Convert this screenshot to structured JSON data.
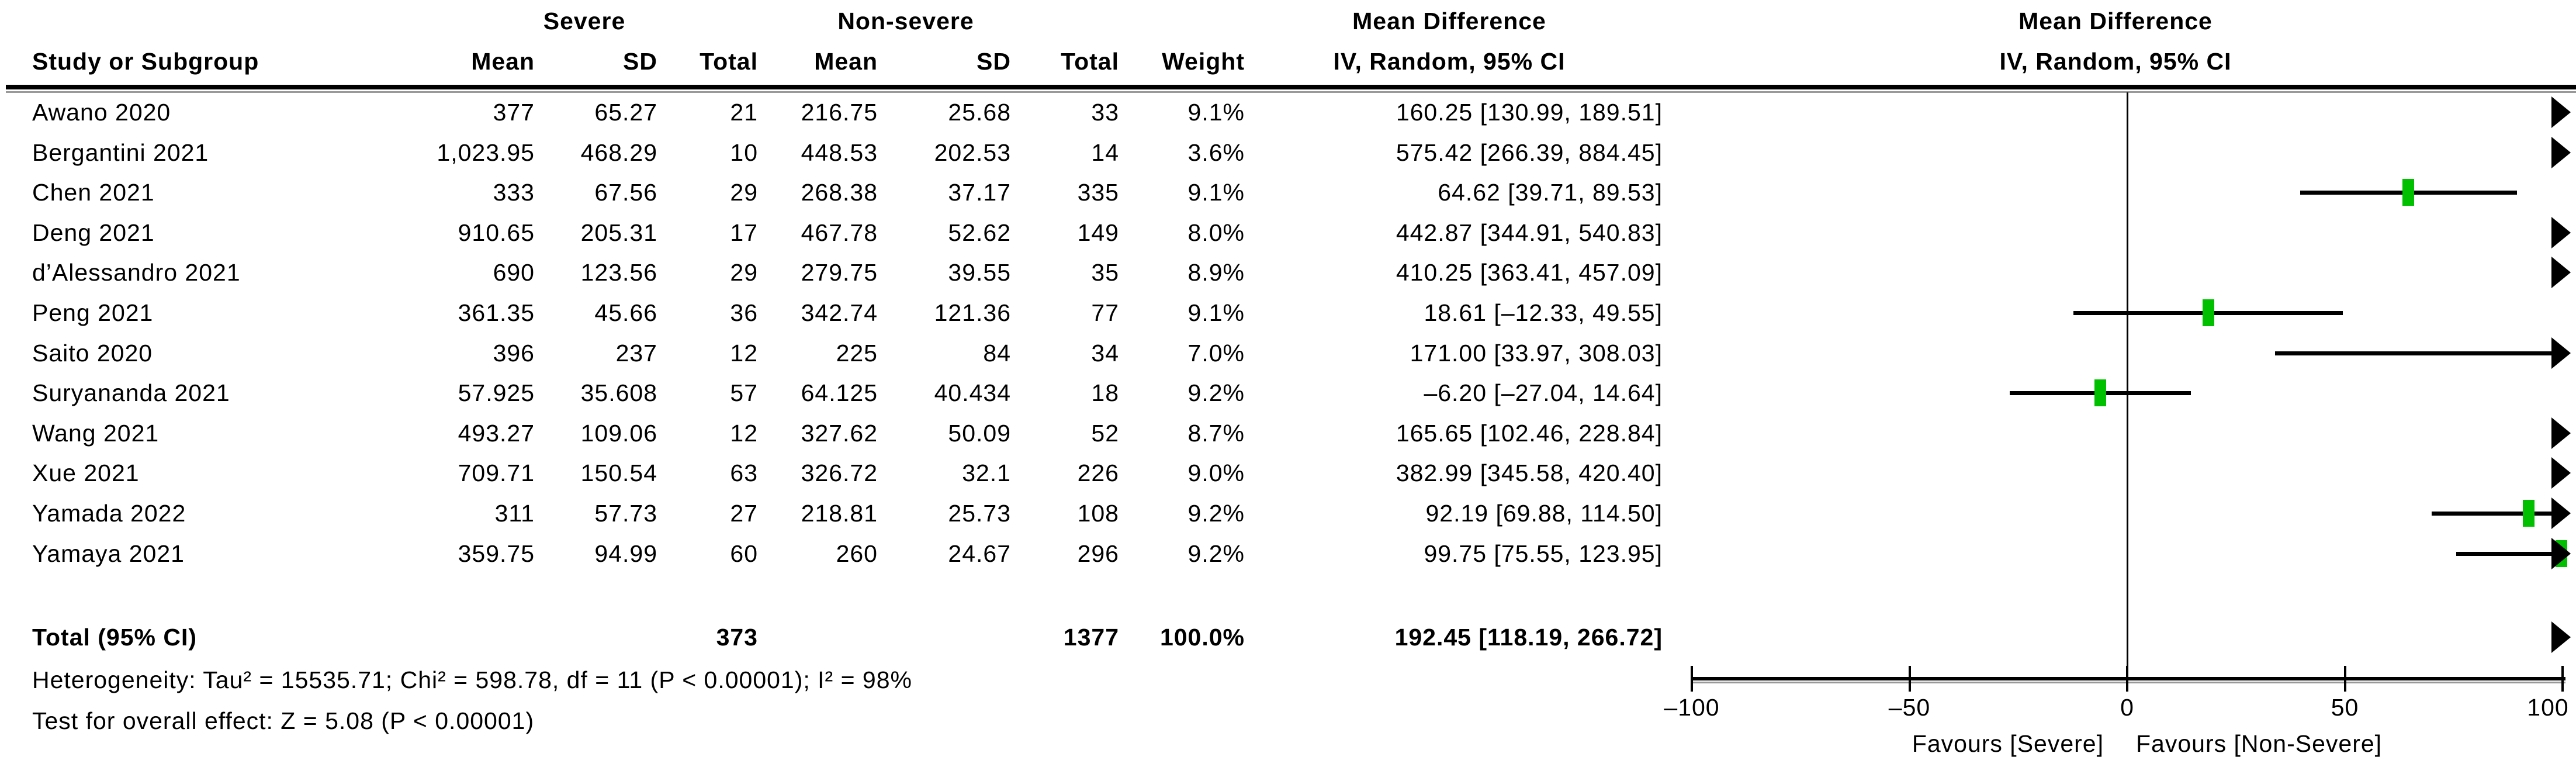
{
  "header": {
    "group_severe": "Severe",
    "group_nonsevere": "Non-severe",
    "col_study": "Study or Subgroup",
    "col_mean": "Mean",
    "col_sd": "SD",
    "col_total": "Total",
    "col_weight": "Weight",
    "md_text_title": "Mean Difference",
    "md_text_sub": "IV, Random, 95% CI",
    "md_plot_title": "Mean Difference",
    "md_plot_sub": "IV, Random, 95% CI"
  },
  "chart_data": {
    "type": "scatter",
    "subtype": "forest-plot",
    "effect_measure": "Mean Difference, IV, Random, 95% CI",
    "xlim": [
      -100,
      100
    ],
    "xticks": [
      -100,
      -50,
      0,
      50,
      100
    ],
    "xtick_labels": [
      "–100",
      "–50",
      "0",
      "50",
      "100"
    ],
    "favours_left": "Favours [Severe]",
    "favours_right": "Favours [Non-Severe]",
    "marker_color": "#00C000",
    "studies": [
      {
        "name": "Awano 2020",
        "severe_mean": "377",
        "severe_sd": "65.27",
        "severe_total": "21",
        "nonsevere_mean": "216.75",
        "nonsevere_sd": "25.68",
        "nonsevere_total": "33",
        "weight": "9.1%",
        "ci_text": "160.25 [130.99, 189.51]",
        "est": 160.25,
        "lo": 130.99,
        "hi": 189.51
      },
      {
        "name": "Bergantini 2021",
        "severe_mean": "1,023.95",
        "severe_sd": "468.29",
        "severe_total": "10",
        "nonsevere_mean": "448.53",
        "nonsevere_sd": "202.53",
        "nonsevere_total": "14",
        "weight": "3.6%",
        "ci_text": "575.42 [266.39, 884.45]",
        "est": 575.42,
        "lo": 266.39,
        "hi": 884.45
      },
      {
        "name": "Chen 2021",
        "severe_mean": "333",
        "severe_sd": "67.56",
        "severe_total": "29",
        "nonsevere_mean": "268.38",
        "nonsevere_sd": "37.17",
        "nonsevere_total": "335",
        "weight": "9.1%",
        "ci_text": "64.62 [39.71, 89.53]",
        "est": 64.62,
        "lo": 39.71,
        "hi": 89.53
      },
      {
        "name": "Deng 2021",
        "severe_mean": "910.65",
        "severe_sd": "205.31",
        "severe_total": "17",
        "nonsevere_mean": "467.78",
        "nonsevere_sd": "52.62",
        "nonsevere_total": "149",
        "weight": "8.0%",
        "ci_text": "442.87 [344.91, 540.83]",
        "est": 442.87,
        "lo": 344.91,
        "hi": 540.83
      },
      {
        "name": "d’Alessandro 2021",
        "severe_mean": "690",
        "severe_sd": "123.56",
        "severe_total": "29",
        "nonsevere_mean": "279.75",
        "nonsevere_sd": "39.55",
        "nonsevere_total": "35",
        "weight": "8.9%",
        "ci_text": "410.25 [363.41, 457.09]",
        "est": 410.25,
        "lo": 363.41,
        "hi": 457.09
      },
      {
        "name": "Peng 2021",
        "severe_mean": "361.35",
        "severe_sd": "45.66",
        "severe_total": "36",
        "nonsevere_mean": "342.74",
        "nonsevere_sd": "121.36",
        "nonsevere_total": "77",
        "weight": "9.1%",
        "ci_text": "18.61 [–12.33, 49.55]",
        "est": 18.61,
        "lo": -12.33,
        "hi": 49.55
      },
      {
        "name": "Saito 2020",
        "severe_mean": "396",
        "severe_sd": "237",
        "severe_total": "12",
        "nonsevere_mean": "225",
        "nonsevere_sd": "84",
        "nonsevere_total": "34",
        "weight": "7.0%",
        "ci_text": "171.00 [33.97, 308.03]",
        "est": 171.0,
        "lo": 33.97,
        "hi": 308.03
      },
      {
        "name": "Suryananda 2021",
        "severe_mean": "57.925",
        "severe_sd": "35.608",
        "severe_total": "57",
        "nonsevere_mean": "64.125",
        "nonsevere_sd": "40.434",
        "nonsevere_total": "18",
        "weight": "9.2%",
        "ci_text": "–6.20 [–27.04, 14.64]",
        "est": -6.2,
        "lo": -27.04,
        "hi": 14.64
      },
      {
        "name": "Wang 2021",
        "severe_mean": "493.27",
        "severe_sd": "109.06",
        "severe_total": "12",
        "nonsevere_mean": "327.62",
        "nonsevere_sd": "50.09",
        "nonsevere_total": "52",
        "weight": "8.7%",
        "ci_text": "165.65 [102.46, 228.84]",
        "est": 165.65,
        "lo": 102.46,
        "hi": 228.84
      },
      {
        "name": "Xue 2021",
        "severe_mean": "709.71",
        "severe_sd": "150.54",
        "severe_total": "63",
        "nonsevere_mean": "326.72",
        "nonsevere_sd": "32.1",
        "nonsevere_total": "226",
        "weight": "9.0%",
        "ci_text": "382.99 [345.58, 420.40]",
        "est": 382.99,
        "lo": 345.58,
        "hi": 420.4
      },
      {
        "name": "Yamada 2022",
        "severe_mean": "311",
        "severe_sd": "57.73",
        "severe_total": "27",
        "nonsevere_mean": "218.81",
        "nonsevere_sd": "25.73",
        "nonsevere_total": "108",
        "weight": "9.2%",
        "ci_text": "92.19 [69.88, 114.50]",
        "est": 92.19,
        "lo": 69.88,
        "hi": 114.5
      },
      {
        "name": "Yamaya 2021",
        "severe_mean": "359.75",
        "severe_sd": "94.99",
        "severe_total": "60",
        "nonsevere_mean": "260",
        "nonsevere_sd": "24.67",
        "nonsevere_total": "296",
        "weight": "9.2%",
        "ci_text": "99.75 [75.55, 123.95]",
        "est": 99.75,
        "lo": 75.55,
        "hi": 123.95
      }
    ],
    "total_row": {
      "label": "Total (95% CI)",
      "severe_total": "373",
      "nonsevere_total": "1377",
      "weight": "100.0%",
      "ci_text": "192.45 [118.19, 266.72]",
      "est": 192.45,
      "lo": 118.19,
      "hi": 266.72
    }
  },
  "footnotes": {
    "heterogeneity": "Heterogeneity: Tau² = 15535.71; Chi² = 598.78, df = 11 (P < 0.00001); I² = 98%",
    "overall_effect": "Test for overall effect: Z = 5.08 (P < 0.00001)"
  }
}
